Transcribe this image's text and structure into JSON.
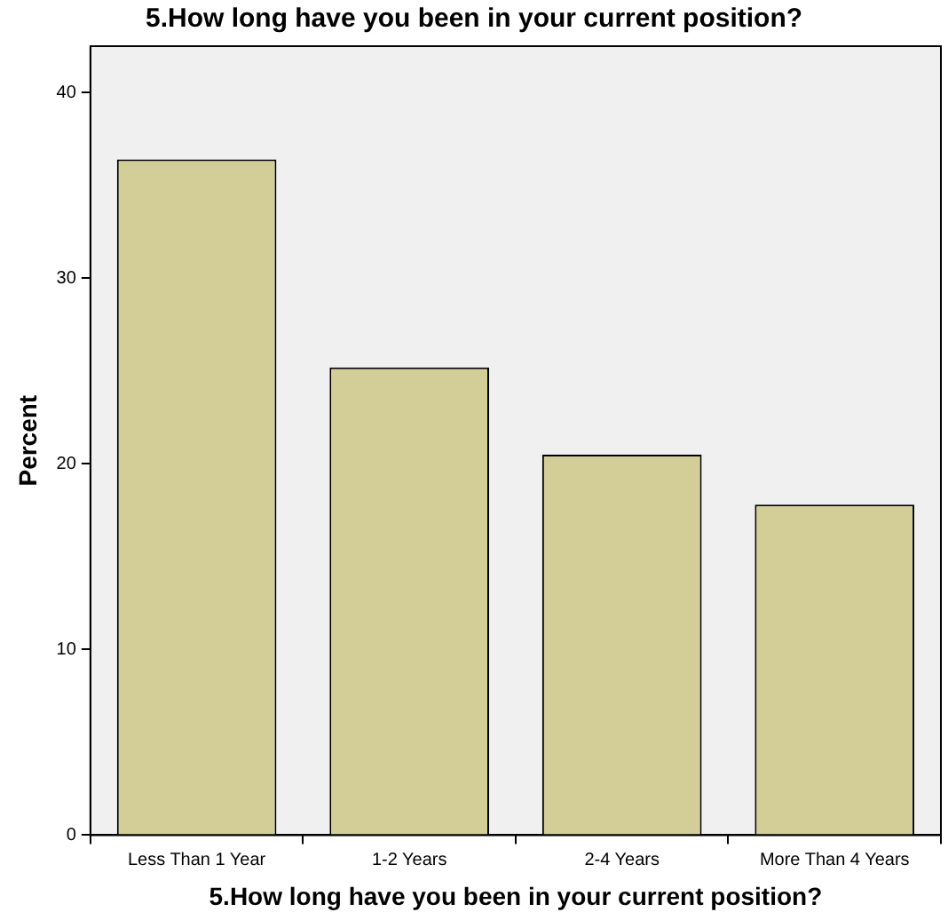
{
  "chart_data": {
    "type": "bar",
    "title": "5.How long have you been in your current position?",
    "xlabel": "5.How long have you been in your current position?",
    "ylabel": "Percent",
    "categories": [
      "Less Than 1 Year",
      "1-2 Years",
      "2-4 Years",
      "More Than 4 Years"
    ],
    "values": [
      36.4,
      25.2,
      20.5,
      17.8
    ],
    "color": "#d3ce97",
    "ylim": [
      0,
      42.5
    ],
    "yticks": [
      0,
      10,
      20,
      30,
      40
    ],
    "grid": false,
    "legend": false
  }
}
